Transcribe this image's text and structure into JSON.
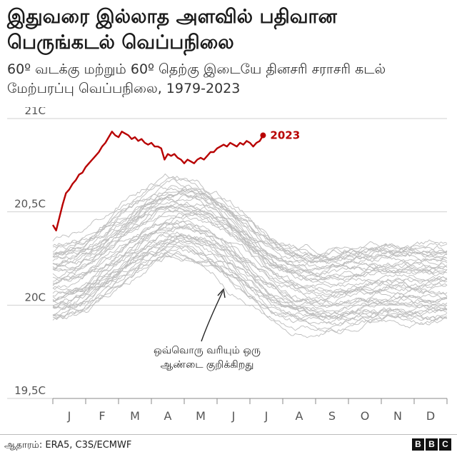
{
  "header": {
    "title": "இதுவரை இல்லாத அளவில் பதிவான பெருங்கடல் வெப்பநிலை",
    "subtitle": "60º வடக்கு மற்றும் 60º தெற்கு இடையே தினசரி சராசரி கடல் மேற்பரப்பு வெப்பநிலை, 1979-2023"
  },
  "footer": {
    "source": "ஆதாரம்: ERA5, C3S/ECMWF",
    "logo_letters": [
      "B",
      "B",
      "C"
    ]
  },
  "colors": {
    "highlight": "#b80000",
    "history": "#bdbdbd",
    "grid": "#d0d0d0",
    "axis": "#888888"
  },
  "chart_data": {
    "type": "line",
    "title": "",
    "xlabel": "",
    "ylabel": "",
    "ylim": [
      19.5,
      21.0
    ],
    "xlim": [
      0,
      12
    ],
    "yticks": [
      {
        "value": 19.5,
        "label": "19,5C"
      },
      {
        "value": 20.0,
        "label": "20C"
      },
      {
        "value": 20.5,
        "label": "20,5C"
      },
      {
        "value": 21.0,
        "label": "21C"
      }
    ],
    "months": [
      "J",
      "F",
      "M",
      "A",
      "M",
      "J",
      "J",
      "A",
      "S",
      "O",
      "N",
      "D"
    ],
    "grid": "horizontal",
    "highlight_series": {
      "name": "2023",
      "x": [
        0.0,
        0.1,
        0.2,
        0.3,
        0.4,
        0.5,
        0.6,
        0.7,
        0.8,
        0.9,
        1.0,
        1.1,
        1.2,
        1.3,
        1.4,
        1.5,
        1.6,
        1.7,
        1.8,
        1.9,
        2.0,
        2.1,
        2.2,
        2.3,
        2.4,
        2.5,
        2.6,
        2.7,
        2.8,
        2.9,
        3.0,
        3.1,
        3.2,
        3.3,
        3.4,
        3.5,
        3.6,
        3.7,
        3.8,
        3.9,
        4.0,
        4.1,
        4.2,
        4.3,
        4.4,
        4.5,
        4.6,
        4.7,
        4.8,
        4.9,
        5.0,
        5.1,
        5.2,
        5.3,
        5.4,
        5.5,
        5.6,
        5.7,
        5.8,
        5.9,
        6.0,
        6.1,
        6.2,
        6.3,
        6.4
      ],
      "y": [
        20.43,
        20.4,
        20.47,
        20.54,
        20.6,
        20.62,
        20.65,
        20.67,
        20.7,
        20.71,
        20.74,
        20.76,
        20.78,
        20.8,
        20.82,
        20.85,
        20.87,
        20.9,
        20.93,
        20.91,
        20.9,
        20.93,
        20.92,
        20.91,
        20.89,
        20.9,
        20.88,
        20.89,
        20.87,
        20.86,
        20.87,
        20.85,
        20.85,
        20.84,
        20.78,
        20.81,
        20.8,
        20.81,
        20.79,
        20.78,
        20.76,
        20.78,
        20.77,
        20.76,
        20.78,
        20.79,
        20.78,
        20.8,
        20.82,
        20.82,
        20.84,
        20.85,
        20.86,
        20.85,
        20.87,
        20.86,
        20.85,
        20.87,
        20.86,
        20.88,
        20.87,
        20.85,
        20.87,
        20.88,
        20.91
      ]
    },
    "highlight_label": "2023",
    "background_series_years": "1979-2022",
    "annotation": "ஒவ்வொரு வரியும் ஒரு ஆண்டை குறிக்கிறது"
  }
}
